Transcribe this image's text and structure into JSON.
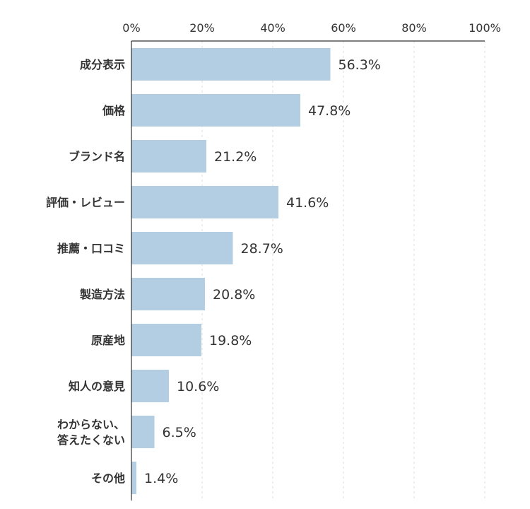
{
  "chart_data": {
    "type": "bar",
    "orientation": "horizontal",
    "title": "",
    "xlabel": "",
    "ylabel": "",
    "categories": [
      "成分表示",
      "価格",
      "ブランド名",
      "評価・レビュー",
      "推薦・口コミ",
      "製造方法",
      "原産地",
      "知人の意見",
      "わからない、答えたくない",
      "その他"
    ],
    "category_lines": [
      [
        "成分表示"
      ],
      [
        "価格"
      ],
      [
        "ブランド名"
      ],
      [
        "評価・レビュー"
      ],
      [
        "推薦・口コミ"
      ],
      [
        "製造方法"
      ],
      [
        "原産地"
      ],
      [
        "知人の意見"
      ],
      [
        "わからない、",
        "答えたくない"
      ],
      [
        "その他"
      ]
    ],
    "values": [
      56.3,
      47.8,
      21.2,
      41.6,
      28.7,
      20.8,
      19.8,
      10.6,
      6.5,
      1.4
    ],
    "value_labels": [
      "56.3%",
      "47.8%",
      "21.2%",
      "41.6%",
      "28.7%",
      "20.8%",
      "19.8%",
      "10.6%",
      "6.5%",
      "1.4%"
    ],
    "xlim": [
      0,
      100
    ],
    "x_ticks": [
      0,
      20,
      40,
      60,
      80,
      100
    ],
    "x_tick_labels": [
      "0%",
      "20%",
      "40%",
      "60%",
      "80%",
      "100%"
    ],
    "x_axis_position": "top",
    "grid": true,
    "legend": "none",
    "colors": {
      "bar": "#b3cde3",
      "axis": "#333333",
      "grid": "#dddddd",
      "text": "#333333"
    }
  }
}
